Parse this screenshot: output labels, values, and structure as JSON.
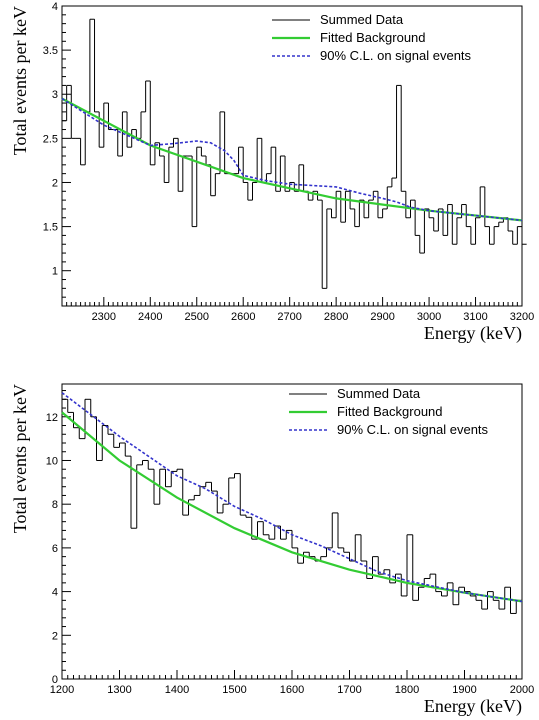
{
  "chart_data": [
    {
      "type": "line",
      "xlabel": "Energy (keV)",
      "ylabel": "Total events per keV",
      "xlim": [
        2210,
        3200
      ],
      "ylim": [
        0.6,
        4.0
      ],
      "x_ticks": [
        "2300",
        "2400",
        "2500",
        "2600",
        "2700",
        "2800",
        "2900",
        "3000",
        "3100",
        "3200"
      ],
      "y_ticks": [
        "1",
        "1.5",
        "2",
        "2.5",
        "3",
        "3.5",
        "4"
      ],
      "legend_position": "top-right",
      "colors": {
        "data": "#000000",
        "background": "#33cc33",
        "limit": "#3333cc"
      },
      "bin_width": 10,
      "series": [
        {
          "name": "Summed Data",
          "style": "histogram",
          "x_start": 2210,
          "values": [
            2.7,
            3.1,
            2.5,
            2.5,
            2.2,
            2.8,
            3.85,
            2.8,
            2.4,
            2.9,
            2.6,
            2.6,
            2.3,
            2.8,
            2.4,
            2.6,
            2.5,
            2.8,
            3.15,
            2.2,
            2.45,
            2.3,
            2.0,
            2.4,
            2.5,
            1.9,
            2.3,
            2.3,
            1.5,
            2.4,
            2.3,
            2.2,
            1.85,
            2.1,
            2.8,
            2.1,
            2.1,
            2.1,
            2.4,
            2.0,
            1.8,
            2.0,
            2.5,
            2.0,
            2.1,
            2.4,
            1.9,
            2.3,
            1.9,
            2.0,
            1.9,
            2.2,
            1.9,
            1.8,
            1.9,
            1.8,
            0.8,
            1.7,
            1.6,
            1.9,
            1.55,
            1.9,
            1.7,
            1.5,
            1.8,
            1.6,
            1.8,
            1.9,
            1.6,
            1.7,
            1.95,
            2.05,
            3.1,
            1.9,
            1.6,
            1.8,
            1.4,
            1.2,
            1.7,
            1.6,
            1.45,
            1.7,
            1.4,
            1.75,
            1.3,
            1.6,
            1.75,
            1.5,
            1.3,
            1.6,
            1.95,
            1.5,
            1.3,
            1.5,
            1.55,
            1.6,
            1.45,
            1.3,
            1.5,
            1.3
          ]
        },
        {
          "name": "Fitted Background",
          "style": "line",
          "x": [
            2210,
            2400,
            2600,
            2800,
            3000,
            3200
          ],
          "values": [
            2.95,
            2.42,
            2.05,
            1.82,
            1.68,
            1.57
          ]
        },
        {
          "name": "90% C.L. on signal events",
          "style": "dashed",
          "x": [
            2210,
            2300,
            2400,
            2450,
            2500,
            2530,
            2560,
            2580,
            2600,
            2650,
            2700,
            2800,
            2850,
            2900,
            2930,
            2960,
            3000,
            3200
          ],
          "values": [
            2.95,
            2.65,
            2.42,
            2.44,
            2.47,
            2.45,
            2.36,
            2.25,
            2.08,
            2.02,
            1.98,
            1.95,
            1.88,
            1.82,
            1.78,
            1.72,
            1.68,
            1.57
          ]
        }
      ]
    },
    {
      "type": "line",
      "xlabel": "Energy (keV)",
      "ylabel": "Total events per keV",
      "xlim": [
        1200,
        2000
      ],
      "ylim": [
        0,
        13.5
      ],
      "x_ticks": [
        "1200",
        "1300",
        "1400",
        "1500",
        "1600",
        "1700",
        "1800",
        "1900",
        "2000"
      ],
      "y_ticks": [
        "0",
        "2",
        "4",
        "6",
        "8",
        "10",
        "12"
      ],
      "legend_position": "top-right",
      "colors": {
        "data": "#000000",
        "background": "#33cc33",
        "limit": "#3333cc"
      },
      "bin_width": 10,
      "series": [
        {
          "name": "Summed Data",
          "style": "histogram",
          "x_start": 1200,
          "values": [
            12.8,
            12.2,
            11.5,
            11.0,
            12.8,
            12.0,
            10.0,
            11.6,
            11.2,
            10.6,
            10.8,
            10.2,
            6.9,
            9.8,
            10.0,
            9.6,
            8.0,
            9.6,
            8.8,
            9.5,
            9.6,
            7.5,
            8.2,
            8.4,
            8.8,
            9.0,
            8.6,
            7.6,
            8.0,
            9.2,
            9.4,
            7.5,
            7.4,
            6.4,
            7.2,
            6.6,
            6.4,
            7.0,
            6.4,
            6.8,
            6.0,
            5.3,
            5.8,
            5.6,
            5.4,
            5.6,
            6.0,
            7.6,
            6.0,
            5.8,
            5.4,
            6.6,
            5.4,
            4.6,
            5.6,
            4.8,
            5.0,
            4.4,
            4.8,
            3.8,
            6.6,
            3.6,
            4.2,
            4.6,
            4.8,
            4.0,
            3.8,
            4.4,
            3.4,
            4.2,
            4.0,
            3.8,
            3.6,
            3.2,
            4.0,
            3.6,
            3.2,
            4.2,
            3.0,
            3.6
          ]
        },
        {
          "name": "Fitted Background",
          "style": "line",
          "x": [
            1200,
            1300,
            1400,
            1500,
            1600,
            1700,
            1800,
            1900,
            2000
          ],
          "values": [
            12.2,
            10.0,
            8.3,
            6.9,
            5.8,
            5.0,
            4.4,
            3.95,
            3.55
          ]
        },
        {
          "name": "90% C.L. on signal events",
          "style": "dashed",
          "x": [
            1200,
            1300,
            1400,
            1450,
            1500,
            1550,
            1600,
            1650,
            1700,
            1750,
            1800,
            1900,
            2000
          ],
          "values": [
            13.1,
            11.1,
            9.3,
            8.7,
            7.9,
            7.3,
            6.6,
            6.1,
            5.5,
            4.9,
            4.5,
            3.95,
            3.55
          ]
        }
      ]
    }
  ]
}
